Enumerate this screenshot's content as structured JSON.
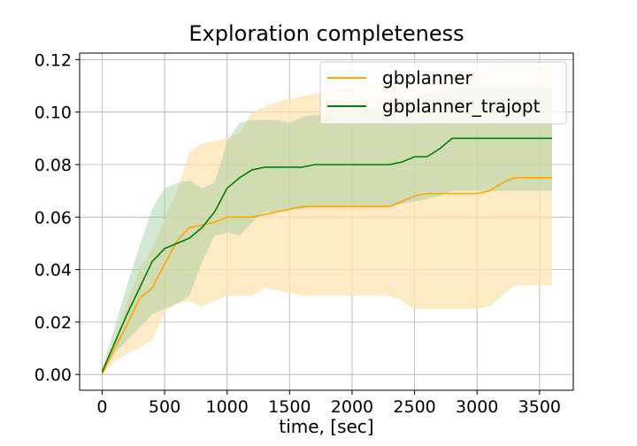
{
  "chart_data": {
    "type": "line",
    "title": "Exploration completeness",
    "xlabel": "time, [sec]",
    "ylabel": "",
    "xlim": [
      -180,
      3770
    ],
    "ylim": [
      -0.006,
      0.1225
    ],
    "xticks": [
      0,
      500,
      1000,
      1500,
      2000,
      2500,
      3000,
      3500
    ],
    "yticks": [
      0.0,
      0.02,
      0.04,
      0.06,
      0.08,
      0.1,
      0.12
    ],
    "ytick_labels": [
      "0.00",
      "0.02",
      "0.04",
      "0.06",
      "0.08",
      "0.10",
      "0.12"
    ],
    "grid": true,
    "legend_position": "top-right",
    "series": [
      {
        "name": "gbplanner",
        "color": "#ffa500",
        "band_color": "#ffe3b3",
        "x": [
          0,
          100,
          200,
          300,
          400,
          500,
          600,
          700,
          800,
          900,
          1000,
          1100,
          1200,
          1300,
          1400,
          1500,
          1600,
          1700,
          1800,
          1900,
          2000,
          2100,
          2200,
          2300,
          2400,
          2500,
          2600,
          2700,
          2800,
          2900,
          3000,
          3100,
          3200,
          3300,
          3400,
          3500,
          3600
        ],
        "mean": [
          0.0,
          0.01,
          0.019,
          0.029,
          0.033,
          0.042,
          0.051,
          0.056,
          0.057,
          0.058,
          0.06,
          0.06,
          0.06,
          0.061,
          0.062,
          0.063,
          0.064,
          0.064,
          0.064,
          0.064,
          0.064,
          0.064,
          0.064,
          0.064,
          0.066,
          0.068,
          0.069,
          0.069,
          0.069,
          0.069,
          0.069,
          0.07,
          0.073,
          0.075,
          0.075,
          0.075,
          0.075
        ],
        "upper": [
          0.001,
          0.013,
          0.028,
          0.04,
          0.048,
          0.059,
          0.07,
          0.085,
          0.088,
          0.089,
          0.09,
          0.092,
          0.1,
          0.102,
          0.104,
          0.105,
          0.106,
          0.107,
          0.108,
          0.109,
          0.11,
          0.11,
          0.111,
          0.111,
          0.112,
          0.112,
          0.113,
          0.114,
          0.114,
          0.115,
          0.116,
          0.116,
          0.117,
          0.117,
          0.117,
          0.117,
          0.117
        ],
        "lower": [
          0.0,
          0.005,
          0.008,
          0.01,
          0.013,
          0.024,
          0.027,
          0.028,
          0.026,
          0.028,
          0.03,
          0.03,
          0.03,
          0.033,
          0.032,
          0.031,
          0.03,
          0.03,
          0.03,
          0.03,
          0.03,
          0.03,
          0.03,
          0.03,
          0.028,
          0.025,
          0.025,
          0.025,
          0.025,
          0.025,
          0.025,
          0.026,
          0.03,
          0.034,
          0.034,
          0.034,
          0.034
        ]
      },
      {
        "name": "gbplanner_trajopt",
        "color": "#008000",
        "band_color": "#98cc98",
        "x": [
          0,
          100,
          200,
          300,
          400,
          500,
          600,
          700,
          800,
          900,
          1000,
          1100,
          1200,
          1300,
          1400,
          1500,
          1600,
          1700,
          1800,
          1900,
          2000,
          2100,
          2200,
          2300,
          2400,
          2500,
          2600,
          2700,
          2800,
          2900,
          3000,
          3100,
          3200,
          3300,
          3400,
          3500,
          3600
        ],
        "mean": [
          0.001,
          0.012,
          0.023,
          0.033,
          0.043,
          0.048,
          0.05,
          0.052,
          0.056,
          0.062,
          0.071,
          0.075,
          0.078,
          0.079,
          0.079,
          0.079,
          0.079,
          0.08,
          0.08,
          0.08,
          0.08,
          0.08,
          0.08,
          0.08,
          0.081,
          0.083,
          0.083,
          0.086,
          0.09,
          0.09,
          0.09,
          0.09,
          0.09,
          0.09,
          0.09,
          0.09,
          0.09
        ],
        "upper": [
          0.002,
          0.018,
          0.034,
          0.049,
          0.063,
          0.071,
          0.073,
          0.074,
          0.071,
          0.073,
          0.089,
          0.096,
          0.097,
          0.097,
          0.097,
          0.096,
          0.098,
          0.099,
          0.099,
          0.1,
          0.1,
          0.101,
          0.101,
          0.102,
          0.104,
          0.106,
          0.107,
          0.108,
          0.109,
          0.109,
          0.109,
          0.109,
          0.109,
          0.109,
          0.109,
          0.109,
          0.109
        ],
        "lower": [
          0.001,
          0.008,
          0.013,
          0.018,
          0.023,
          0.025,
          0.027,
          0.03,
          0.043,
          0.053,
          0.054,
          0.053,
          0.058,
          0.062,
          0.062,
          0.063,
          0.063,
          0.064,
          0.064,
          0.064,
          0.064,
          0.064,
          0.064,
          0.064,
          0.065,
          0.066,
          0.067,
          0.068,
          0.07,
          0.07,
          0.07,
          0.07,
          0.07,
          0.07,
          0.07,
          0.07,
          0.07
        ]
      }
    ]
  }
}
